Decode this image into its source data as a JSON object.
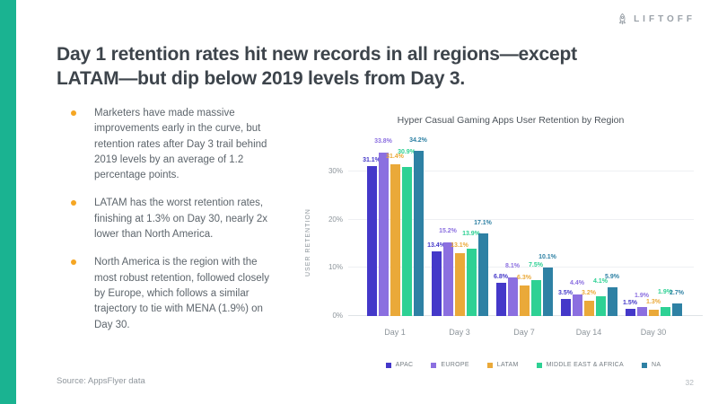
{
  "accent_color": "#1ab391",
  "logo": {
    "text": "LIFTOFF"
  },
  "title_lines": [
    "Day 1 retention rates hit new records in all regions—except",
    "LATAM—but dip below 2019 levels from Day 3."
  ],
  "bullet_color": "#f5a623",
  "bullets": [
    "Marketers have made massive improvements early in the curve, but retention rates after Day 3 trail behind 2019 levels by an average of 1.2 percentage points.",
    "LATAM has the worst retention rates,  finishing at 1.3% on Day 30, nearly 2x lower than North America.",
    "North America is the region with the most robust retention, followed closely by Europe, which follows a similar trajectory to tie with MENA (1.9%) on Day 30."
  ],
  "source": "Source: AppsFlyer data",
  "page_number": "32",
  "chart_data": {
    "type": "bar",
    "title": "Hyper Casual Gaming Apps User Retention by Region",
    "ylabel": "USER RETENTION",
    "xlabel": "",
    "categories": [
      "Day 1",
      "Day 3",
      "Day 7",
      "Day 14",
      "Day 30"
    ],
    "series": [
      {
        "name": "APAC",
        "color": "#4438c9",
        "values": [
          31.1,
          13.4,
          6.8,
          3.5,
          1.5
        ]
      },
      {
        "name": "EUROPE",
        "color": "#8b6fe0",
        "values": [
          33.8,
          15.2,
          8.1,
          4.4,
          1.9
        ]
      },
      {
        "name": "LATAM",
        "color": "#eaa939",
        "values": [
          31.4,
          13.1,
          6.3,
          3.2,
          1.3
        ]
      },
      {
        "name": "MIDDLE EAST & AFRICA",
        "color": "#2ed194",
        "values": [
          30.9,
          13.9,
          7.5,
          4.1,
          1.9
        ]
      },
      {
        "name": "NA",
        "color": "#2e81a4",
        "values": [
          34.2,
          17.1,
          10.1,
          5.9,
          2.7
        ]
      }
    ],
    "yticks": [
      "0%",
      "10%",
      "20%",
      "30%"
    ],
    "ylim": [
      0,
      35
    ],
    "grid": true,
    "legend_position": "bottom",
    "value_label_format": "0.0%"
  }
}
